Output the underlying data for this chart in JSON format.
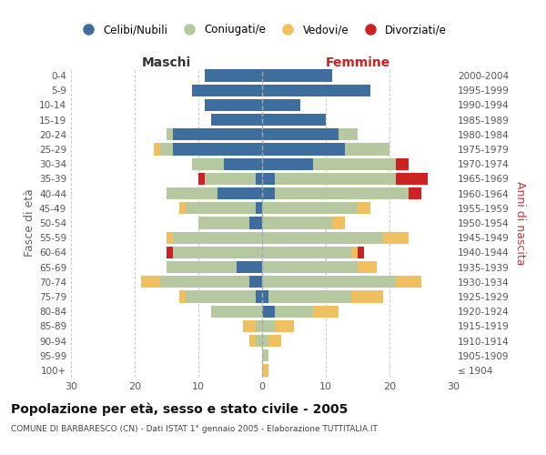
{
  "age_groups": [
    "100+",
    "95-99",
    "90-94",
    "85-89",
    "80-84",
    "75-79",
    "70-74",
    "65-69",
    "60-64",
    "55-59",
    "50-54",
    "45-49",
    "40-44",
    "35-39",
    "30-34",
    "25-29",
    "20-24",
    "15-19",
    "10-14",
    "5-9",
    "0-4"
  ],
  "birth_years": [
    "≤ 1904",
    "1905-1909",
    "1910-1914",
    "1915-1919",
    "1920-1924",
    "1925-1929",
    "1930-1934",
    "1935-1939",
    "1940-1944",
    "1945-1949",
    "1950-1954",
    "1955-1959",
    "1960-1964",
    "1965-1969",
    "1970-1974",
    "1975-1979",
    "1980-1984",
    "1985-1989",
    "1990-1994",
    "1995-1999",
    "2000-2004"
  ],
  "colors": {
    "celibi": "#3d6e9e",
    "coniugati": "#b5c8a0",
    "vedovi": "#f0c060",
    "divorziati": "#cc2222"
  },
  "males": {
    "celibi": [
      0,
      0,
      0,
      0,
      0,
      1,
      2,
      4,
      0,
      0,
      2,
      1,
      7,
      1,
      6,
      14,
      14,
      8,
      9,
      11,
      9
    ],
    "coniugati": [
      0,
      0,
      1,
      1,
      8,
      11,
      14,
      11,
      14,
      14,
      8,
      11,
      8,
      8,
      5,
      2,
      1,
      0,
      0,
      0,
      0
    ],
    "vedovi": [
      0,
      0,
      1,
      2,
      0,
      1,
      3,
      0,
      0,
      1,
      0,
      1,
      0,
      0,
      0,
      1,
      0,
      0,
      0,
      0,
      0
    ],
    "divorziati": [
      0,
      0,
      0,
      0,
      0,
      0,
      0,
      0,
      1,
      0,
      0,
      0,
      0,
      1,
      0,
      0,
      0,
      0,
      0,
      0,
      0
    ]
  },
  "females": {
    "celibi": [
      0,
      0,
      0,
      0,
      2,
      1,
      0,
      0,
      0,
      0,
      0,
      0,
      2,
      2,
      8,
      13,
      12,
      10,
      6,
      17,
      11
    ],
    "coniugati": [
      0,
      1,
      1,
      2,
      6,
      13,
      21,
      15,
      14,
      19,
      11,
      15,
      21,
      19,
      13,
      7,
      3,
      0,
      0,
      0,
      0
    ],
    "vedovi": [
      1,
      0,
      2,
      3,
      4,
      5,
      4,
      3,
      1,
      4,
      2,
      2,
      0,
      0,
      0,
      0,
      0,
      0,
      0,
      0,
      0
    ],
    "divorziati": [
      0,
      0,
      0,
      0,
      0,
      0,
      0,
      0,
      1,
      0,
      0,
      0,
      2,
      5,
      2,
      0,
      0,
      0,
      0,
      0,
      0
    ]
  },
  "title": "Popolazione per età, sesso e stato civile - 2005",
  "subtitle": "COMUNE DI BARBARESCO (CN) - Dati ISTAT 1° gennaio 2005 - Elaborazione TUTTITALIA.IT",
  "xlabel_left": "Maschi",
  "xlabel_right": "Femmine",
  "ylabel_left": "Fasce di età",
  "ylabel_right": "Anni di nascita",
  "legend_labels": [
    "Celibi/Nubili",
    "Coniugati/e",
    "Vedovi/e",
    "Divorziati/e"
  ],
  "xlim": 30,
  "bg_color": "#ffffff",
  "grid_color": "#cccccc",
  "bar_height": 0.82
}
